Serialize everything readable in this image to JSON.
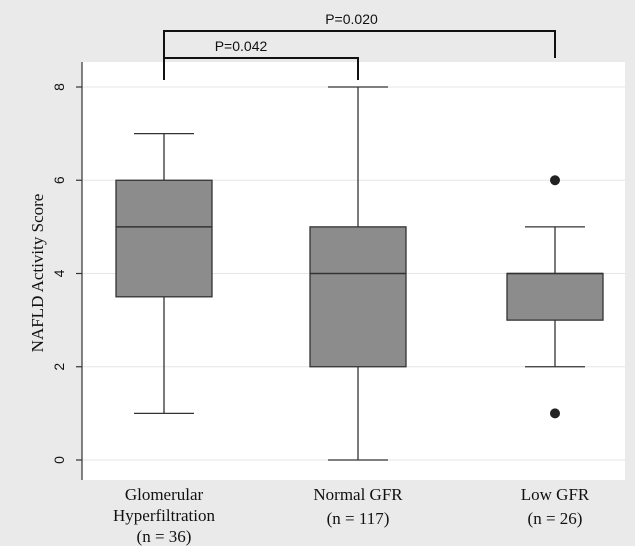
{
  "chart_data": {
    "type": "boxplot",
    "ylabel": "NAFLD Activity Score",
    "ylim": [
      0,
      8
    ],
    "yticks": [
      "0",
      "2",
      "4",
      "6",
      "8"
    ],
    "grid": true,
    "categories": [
      {
        "lines": [
          "Glomerular",
          "Hyperfiltration",
          "(n = 36)"
        ]
      },
      {
        "lines": [
          "Normal GFR",
          "(n = 117)"
        ]
      },
      {
        "lines": [
          "Low GFR",
          "(n = 26)"
        ]
      }
    ],
    "boxes": [
      {
        "whisker_low": 1,
        "q1": 3.5,
        "median": 5,
        "q3": 6,
        "whisker_high": 7,
        "outliers": []
      },
      {
        "whisker_low": 0,
        "q1": 2,
        "median": 4,
        "q3": 5,
        "whisker_high": 8,
        "outliers": []
      },
      {
        "whisker_low": 2,
        "q1": 3,
        "median": 4,
        "q3": 4,
        "whisker_high": 5,
        "outliers": [
          6,
          1
        ]
      }
    ],
    "significance": [
      {
        "from": 0,
        "to": 1,
        "label": "P=0.042"
      },
      {
        "from": 0,
        "to": 2,
        "label": "P=0.020"
      }
    ],
    "colors": {
      "plot_bg": "#ffffff",
      "outer_bg": "#eaeaea",
      "box_fill": "#8c8c8c",
      "stroke": "#333333",
      "grid": "#e6e6e6"
    }
  }
}
